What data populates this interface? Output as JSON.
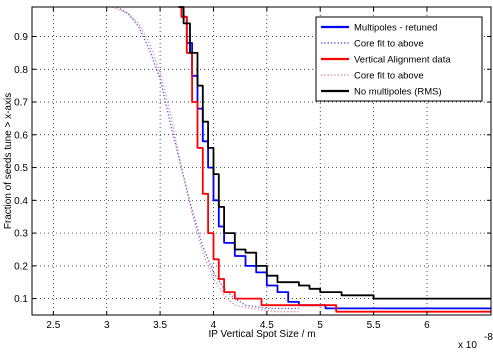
{
  "chart_data": {
    "type": "line",
    "title": "",
    "xlabel": "IP Vertical Spot Size / m",
    "ylabel": "Fraction of seeds tune > x-axis",
    "x_exponent_label": "x 10",
    "x_exponent_power": "-8",
    "xlim": [
      2.3,
      6.6
    ],
    "ylim": [
      0.05,
      0.99
    ],
    "x_ticks": [
      2.5,
      3,
      3.5,
      4,
      4.5,
      5,
      5.5,
      6
    ],
    "x_tick_labels": [
      "2.5",
      "3",
      "3.5",
      "4",
      "4.5",
      "5",
      "5.5",
      "6"
    ],
    "y_ticks": [
      0.1,
      0.2,
      0.3,
      0.4,
      0.5,
      0.6,
      0.7,
      0.8,
      0.9
    ],
    "y_tick_labels": [
      "0.1",
      "0.2",
      "0.3",
      "0.4",
      "0.5",
      "0.6",
      "0.7",
      "0.8",
      "0.9"
    ],
    "grid": true,
    "legend_position": "top-right",
    "series": [
      {
        "name": "Multipoles - retuned",
        "color": "#0000ff",
        "style": "solid",
        "step": true,
        "points": [
          [
            3.68,
            0.99
          ],
          [
            3.7,
            0.96
          ],
          [
            3.75,
            0.88
          ],
          [
            3.8,
            0.78
          ],
          [
            3.85,
            0.68
          ],
          [
            3.9,
            0.58
          ],
          [
            3.95,
            0.5
          ],
          [
            4.0,
            0.4
          ],
          [
            4.05,
            0.32
          ],
          [
            4.1,
            0.27
          ],
          [
            4.2,
            0.23
          ],
          [
            4.3,
            0.2
          ],
          [
            4.4,
            0.18
          ],
          [
            4.5,
            0.14
          ],
          [
            4.6,
            0.12
          ],
          [
            4.7,
            0.09
          ],
          [
            4.8,
            0.08
          ],
          [
            5.0,
            0.08
          ],
          [
            5.05,
            0.07
          ],
          [
            6.6,
            0.07
          ]
        ]
      },
      {
        "name": "Core fit to above",
        "color": "#5a5ad8",
        "style": "dotted",
        "step": false,
        "points": [
          [
            3.1,
            0.99
          ],
          [
            3.2,
            0.97
          ],
          [
            3.3,
            0.93
          ],
          [
            3.4,
            0.86
          ],
          [
            3.5,
            0.77
          ],
          [
            3.6,
            0.63
          ],
          [
            3.7,
            0.5
          ],
          [
            3.8,
            0.37
          ],
          [
            3.9,
            0.26
          ],
          [
            4.0,
            0.18
          ],
          [
            4.1,
            0.13
          ],
          [
            4.2,
            0.1
          ],
          [
            4.3,
            0.08
          ],
          [
            4.5,
            0.07
          ],
          [
            4.8,
            0.07
          ]
        ]
      },
      {
        "name": "Vertical Alignment data",
        "color": "#ff0000",
        "style": "solid",
        "step": true,
        "points": [
          [
            3.67,
            0.99
          ],
          [
            3.7,
            0.96
          ],
          [
            3.75,
            0.85
          ],
          [
            3.8,
            0.7
          ],
          [
            3.85,
            0.56
          ],
          [
            3.9,
            0.42
          ],
          [
            3.95,
            0.3
          ],
          [
            4.0,
            0.22
          ],
          [
            4.05,
            0.16
          ],
          [
            4.1,
            0.12
          ],
          [
            4.2,
            0.1
          ],
          [
            4.4,
            0.1
          ],
          [
            4.45,
            0.08
          ],
          [
            5.1,
            0.08
          ],
          [
            5.15,
            0.06
          ],
          [
            6.6,
            0.06
          ]
        ]
      },
      {
        "name": "Core fit to above",
        "color": "#e08aa8",
        "style": "dotted",
        "step": false,
        "points": [
          [
            3.05,
            0.99
          ],
          [
            3.2,
            0.97
          ],
          [
            3.3,
            0.94
          ],
          [
            3.4,
            0.88
          ],
          [
            3.5,
            0.79
          ],
          [
            3.6,
            0.66
          ],
          [
            3.7,
            0.5
          ],
          [
            3.8,
            0.36
          ],
          [
            3.9,
            0.24
          ],
          [
            4.0,
            0.16
          ],
          [
            4.1,
            0.11
          ],
          [
            4.2,
            0.08
          ],
          [
            4.35,
            0.07
          ],
          [
            4.6,
            0.06
          ],
          [
            4.8,
            0.06
          ]
        ]
      },
      {
        "name": "No multipoles (RMS)",
        "color": "#000000",
        "style": "solid",
        "step": true,
        "points": [
          [
            3.68,
            0.99
          ],
          [
            3.72,
            0.94
          ],
          [
            3.78,
            0.85
          ],
          [
            3.85,
            0.75
          ],
          [
            3.9,
            0.64
          ],
          [
            3.95,
            0.56
          ],
          [
            4.0,
            0.48
          ],
          [
            4.05,
            0.38
          ],
          [
            4.1,
            0.3
          ],
          [
            4.2,
            0.25
          ],
          [
            4.3,
            0.24
          ],
          [
            4.4,
            0.2
          ],
          [
            4.5,
            0.17
          ],
          [
            4.6,
            0.15
          ],
          [
            4.8,
            0.14
          ],
          [
            4.9,
            0.13
          ],
          [
            5.0,
            0.12
          ],
          [
            5.2,
            0.11
          ],
          [
            5.5,
            0.1
          ],
          [
            6.6,
            0.1
          ]
        ]
      }
    ]
  }
}
